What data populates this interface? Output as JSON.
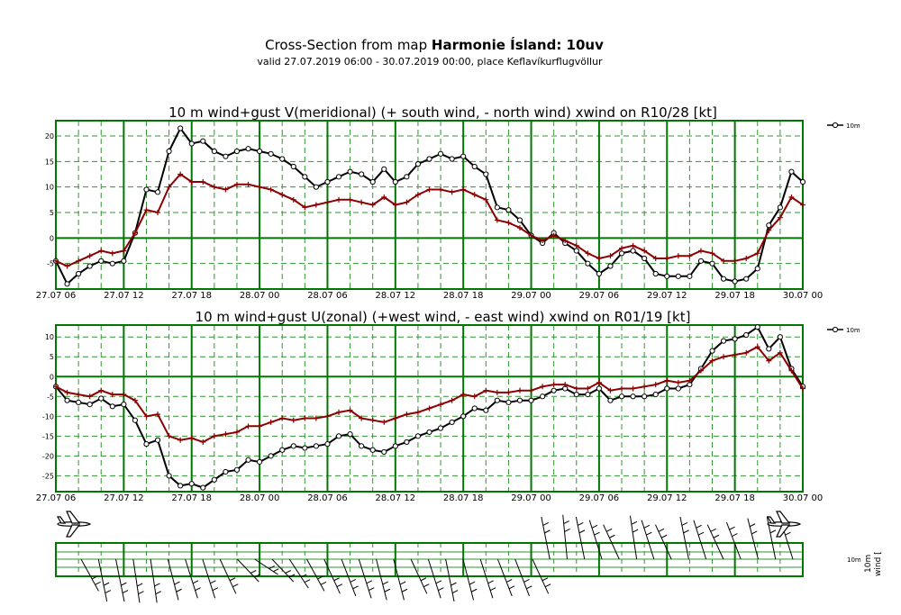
{
  "header": {
    "title_prefix": "Cross-Section from map ",
    "title_bold": "Harmonie Ísland: 10uv",
    "subtitle": "valid 27.07.2019 06:00 - 30.07.2019 00:00, place Keflavíkurflugvöllur"
  },
  "colors": {
    "frame": "#007700",
    "grid_major": "#007700",
    "grid_minor": "#2f962f",
    "wind": "#000000",
    "gust": "#8b0000"
  },
  "time_labels": [
    "27.07 06",
    "27.07 12",
    "27.07 18",
    "28.07 00",
    "28.07 06",
    "28.07 12",
    "28.07 18",
    "29.07 00",
    "29.07 06",
    "29.07 12",
    "29.07 18",
    "30.07 00"
  ],
  "chart_data": [
    {
      "type": "line",
      "title": "10 m wind+gust V(meridional) (+ south wind, - north wind) xwind on R10/28 [kt]",
      "x_start_hour": 0,
      "x_step_hours": 1,
      "xlim": [
        0,
        66
      ],
      "ylim": [
        -10,
        23
      ],
      "yticks": [
        -5,
        0,
        5,
        10,
        15,
        20
      ],
      "legend_label": "10m",
      "legend_position": "top-right",
      "grid": true,
      "series": [
        {
          "name": "10m",
          "role": "wind",
          "values": [
            -4.5,
            -9,
            -7,
            -5.5,
            -4.5,
            -5,
            -4.5,
            1,
            9.5,
            9,
            17,
            21.5,
            18.5,
            19,
            17,
            16,
            17,
            17.5,
            17,
            16.5,
            15.5,
            14,
            12,
            10,
            11,
            12,
            13,
            12.5,
            11,
            13.5,
            11,
            12,
            14.5,
            15.5,
            16.5,
            15.5,
            16,
            14,
            12.5,
            6,
            5.5,
            3.5,
            0.5,
            -1,
            1,
            -1,
            -2.5,
            -5,
            -7,
            -5.5,
            -3,
            -2.5,
            -4,
            -7,
            -7.5,
            -7.5,
            -7.5,
            -4.5,
            -5,
            -8,
            -8.5,
            -8,
            -6,
            2.5,
            6,
            13,
            11
          ]
        },
        {
          "name": "",
          "role": "gust",
          "values": [
            -4.5,
            -5.5,
            -4.5,
            -3.5,
            -2.5,
            -3,
            -2.5,
            1,
            5.5,
            5,
            10,
            12.5,
            11,
            11,
            10,
            9.5,
            10.5,
            10.5,
            10,
            9.5,
            8.5,
            7.5,
            6,
            6.5,
            7,
            7.5,
            7.5,
            7,
            6.5,
            8,
            6.5,
            7,
            8.5,
            9.5,
            9.5,
            9,
            9.5,
            8.5,
            7.5,
            3.5,
            3,
            2,
            0.5,
            -0.5,
            0.5,
            -0.5,
            -1.5,
            -3,
            -4,
            -3.5,
            -2,
            -1.5,
            -2.5,
            -4,
            -4,
            -3.5,
            -3.5,
            -2.5,
            -3,
            -4.5,
            -4.5,
            -4,
            -3,
            1.5,
            4,
            8,
            6.5
          ]
        }
      ]
    },
    {
      "type": "line",
      "title": "10 m wind+gust U(zonal) (+west wind, - east wind) xwind on R01/19 [kt]",
      "x_start_hour": 0,
      "x_step_hours": 1,
      "xlim": [
        0,
        66
      ],
      "ylim": [
        -29,
        13
      ],
      "yticks": [
        -25,
        -20,
        -15,
        -10,
        -5,
        0,
        5,
        10
      ],
      "legend_label": "10m",
      "legend_position": "top-right",
      "grid": true,
      "series": [
        {
          "name": "10m",
          "role": "wind",
          "values": [
            -2.5,
            -6,
            -6.5,
            -7,
            -5.5,
            -7.5,
            -7,
            -11,
            -17,
            -16,
            -25,
            -27.5,
            -27,
            -28,
            -26,
            -24,
            -23.5,
            -21,
            -21.5,
            -20,
            -18.5,
            -17.5,
            -18,
            -17.5,
            -17,
            -15,
            -14.5,
            -17.5,
            -18.5,
            -19,
            -17.5,
            -16.5,
            -15,
            -14,
            -13,
            -11.5,
            -10,
            -8,
            -8.5,
            -6,
            -6.5,
            -6,
            -6,
            -5,
            -3.5,
            -3,
            -4.5,
            -4.5,
            -3,
            -6,
            -5,
            -5,
            -5,
            -4.5,
            -3,
            -3,
            -2,
            2,
            6.5,
            9,
            9.5,
            10.5,
            12.5,
            7,
            10,
            2,
            -2.5
          ]
        },
        {
          "name": "",
          "role": "gust",
          "values": [
            -2.5,
            -4,
            -4.5,
            -5,
            -3.5,
            -4.5,
            -4.5,
            -6,
            -10,
            -9.5,
            -15,
            -16,
            -15.5,
            -16.5,
            -15,
            -14.5,
            -14,
            -12.5,
            -12.5,
            -11.5,
            -10.5,
            -11,
            -10.5,
            -10.5,
            -10,
            -9,
            -8.5,
            -10.5,
            -11,
            -11.5,
            -10.5,
            -9.5,
            -9,
            -8,
            -7,
            -6,
            -4.5,
            -5,
            -3.5,
            -4,
            -4,
            -3.5,
            -3.5,
            -2.5,
            -2,
            -2,
            -3,
            -3,
            -1.5,
            -3.5,
            -3,
            -3,
            -2.5,
            -2,
            -1,
            -1.5,
            -1,
            1.5,
            4,
            5,
            5.5,
            6,
            7.5,
            4,
            6,
            1.5,
            -3
          ]
        }
      ]
    }
  ],
  "barbs": {
    "label_level": "10m",
    "label_axis": "wind [",
    "directions_deg": [
      45,
      20,
      20,
      15,
      15,
      25,
      30,
      30,
      40,
      60,
      70,
      60,
      50,
      45,
      40,
      35,
      30,
      25,
      25,
      40,
      30,
      20,
      25,
      30,
      35,
      35,
      40,
      200,
      190,
      200,
      210,
      220,
      195,
      210,
      220,
      200,
      210,
      220,
      215,
      205,
      200,
      210
    ]
  }
}
